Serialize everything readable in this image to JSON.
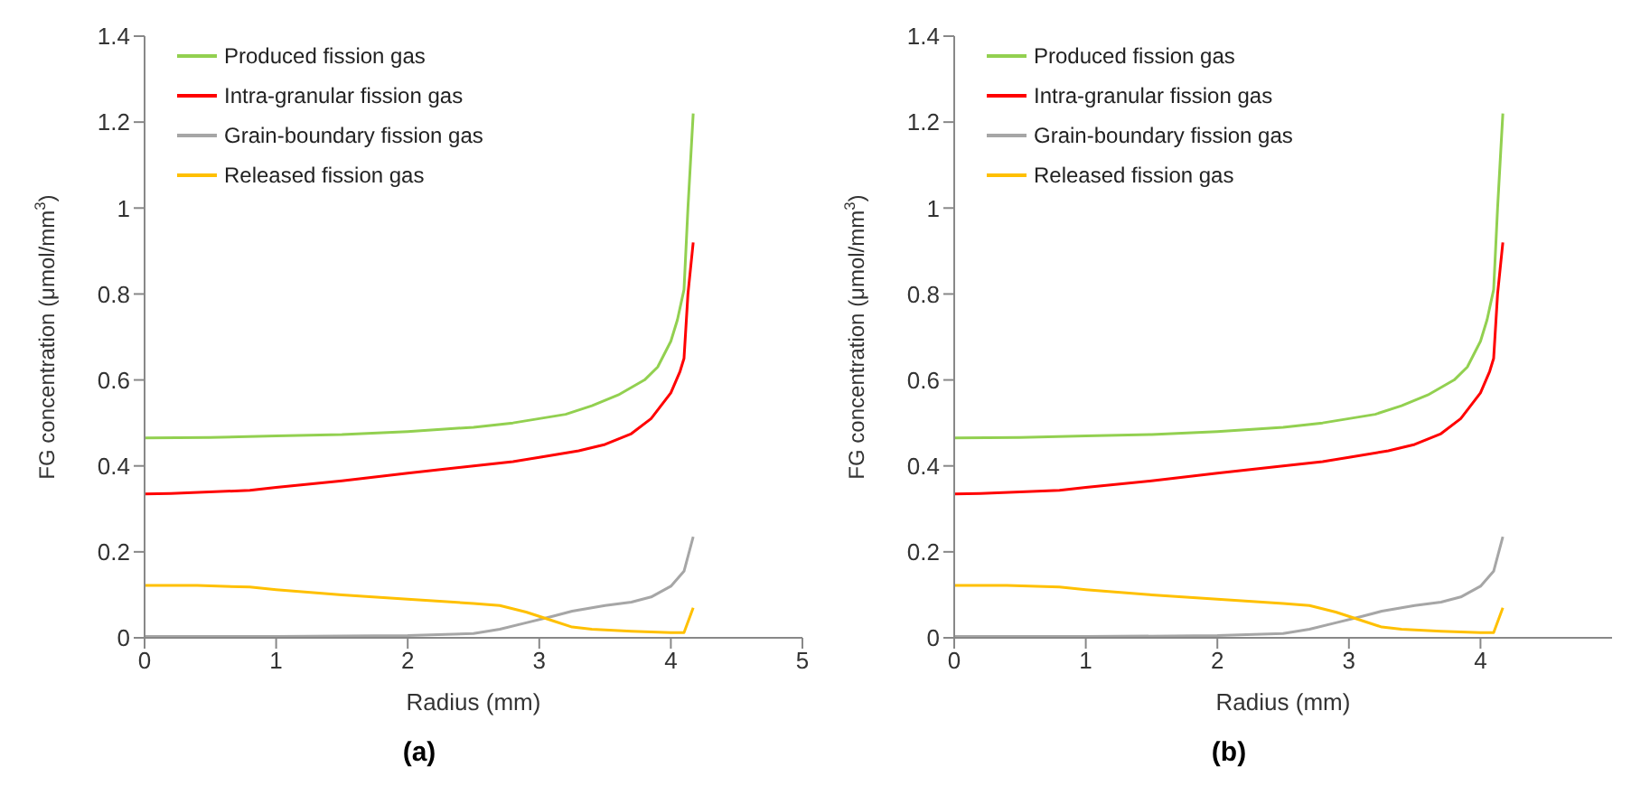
{
  "chart_data": [
    {
      "type": "line",
      "annotations": [
        "(a)"
      ],
      "xlabel": "Radius (mm)",
      "ylabel": "FG concentration (μmol/mm$^{3}$)",
      "xlim": [
        0,
        5
      ],
      "xticks": [
        0,
        1,
        2,
        3,
        4,
        5
      ],
      "ylim": [
        0,
        1.4
      ],
      "yticks": [
        0,
        0.2,
        0.4,
        0.6,
        0.8,
        1,
        1.2,
        1.4
      ],
      "grid": false,
      "legend": "top left",
      "marker": "none",
      "line_style": "solid",
      "series": [
        {
          "name": "Produced fission gas",
          "color": "#92d050",
          "x": [
            0,
            0.5,
            1,
            1.5,
            2,
            2.5,
            2.8,
            3,
            3.2,
            3.4,
            3.6,
            3.8,
            3.9,
            4.0,
            4.05,
            4.1,
            4.13,
            4.17
          ],
          "values": [
            0.465,
            0.466,
            0.47,
            0.473,
            0.48,
            0.49,
            0.5,
            0.51,
            0.52,
            0.54,
            0.565,
            0.6,
            0.63,
            0.69,
            0.74,
            0.81,
            1.0,
            1.22
          ]
        },
        {
          "name": "Intra-granular fission gas",
          "color": "#ff0000",
          "x": [
            0,
            0.2,
            0.8,
            1,
            1.5,
            2,
            2.5,
            2.8,
            3,
            3.3,
            3.5,
            3.7,
            3.85,
            4.0,
            4.07,
            4.1,
            4.13,
            4.17
          ],
          "values": [
            0.335,
            0.336,
            0.343,
            0.35,
            0.365,
            0.383,
            0.4,
            0.41,
            0.42,
            0.435,
            0.45,
            0.475,
            0.51,
            0.57,
            0.62,
            0.65,
            0.8,
            0.92
          ]
        },
        {
          "name": "Grain-boundary fission gas",
          "color": "#a6a6a6",
          "x": [
            0,
            1,
            2,
            2.5,
            2.7,
            2.9,
            3.1,
            3.25,
            3.5,
            3.7,
            3.85,
            4.0,
            4.1,
            4.17
          ],
          "values": [
            0.003,
            0.003,
            0.005,
            0.01,
            0.02,
            0.035,
            0.05,
            0.062,
            0.075,
            0.083,
            0.095,
            0.12,
            0.155,
            0.235
          ]
        },
        {
          "name": "Released fission gas",
          "color": "#ffc000",
          "x": [
            0,
            0.4,
            0.8,
            1,
            1.5,
            2,
            2.5,
            2.7,
            2.9,
            3.1,
            3.25,
            3.4,
            3.7,
            4.0,
            4.1,
            4.17
          ],
          "values": [
            0.122,
            0.122,
            0.118,
            0.112,
            0.1,
            0.09,
            0.08,
            0.075,
            0.06,
            0.04,
            0.025,
            0.02,
            0.015,
            0.012,
            0.012,
            0.07
          ]
        }
      ]
    },
    {
      "type": "line",
      "annotations": [
        "(b)"
      ],
      "xlabel": "Radius (mm)",
      "ylabel": "FG concentration (μmol/mm$^{3}$)",
      "xlim": [
        0,
        5
      ],
      "xticks": [
        0,
        1,
        2,
        3,
        4
      ],
      "ylim": [
        0,
        1.4
      ],
      "yticks": [
        0,
        0.2,
        0.4,
        0.6,
        0.8,
        1,
        1.2,
        1.4
      ],
      "grid": false,
      "legend": "top left",
      "marker": "none",
      "line_style": "solid",
      "series": [
        {
          "name": "Produced fission gas",
          "color": "#92d050",
          "x": [
            0,
            0.5,
            1,
            1.5,
            2,
            2.5,
            2.8,
            3,
            3.2,
            3.4,
            3.6,
            3.8,
            3.9,
            4.0,
            4.05,
            4.1,
            4.13,
            4.17
          ],
          "values": [
            0.465,
            0.466,
            0.47,
            0.473,
            0.48,
            0.49,
            0.5,
            0.51,
            0.52,
            0.54,
            0.565,
            0.6,
            0.63,
            0.69,
            0.74,
            0.81,
            1.0,
            1.22
          ]
        },
        {
          "name": "Intra-granular fission gas",
          "color": "#ff0000",
          "x": [
            0,
            0.2,
            0.8,
            1,
            1.5,
            2,
            2.5,
            2.8,
            3,
            3.3,
            3.5,
            3.7,
            3.85,
            4.0,
            4.07,
            4.1,
            4.13,
            4.17
          ],
          "values": [
            0.335,
            0.336,
            0.343,
            0.35,
            0.365,
            0.383,
            0.4,
            0.41,
            0.42,
            0.435,
            0.45,
            0.475,
            0.51,
            0.57,
            0.62,
            0.65,
            0.8,
            0.92
          ]
        },
        {
          "name": "Grain-boundary fission gas",
          "color": "#a6a6a6",
          "x": [
            0,
            1,
            2,
            2.5,
            2.7,
            2.9,
            3.1,
            3.25,
            3.5,
            3.7,
            3.85,
            4.0,
            4.1,
            4.17
          ],
          "values": [
            0.003,
            0.003,
            0.005,
            0.01,
            0.02,
            0.035,
            0.05,
            0.062,
            0.075,
            0.083,
            0.095,
            0.12,
            0.155,
            0.235
          ]
        },
        {
          "name": "Released fission gas",
          "color": "#ffc000",
          "x": [
            0,
            0.4,
            0.8,
            1,
            1.5,
            2,
            2.5,
            2.7,
            2.9,
            3.1,
            3.25,
            3.4,
            3.7,
            4.0,
            4.1,
            4.17
          ],
          "values": [
            0.122,
            0.122,
            0.118,
            0.112,
            0.1,
            0.09,
            0.08,
            0.075,
            0.06,
            0.04,
            0.025,
            0.02,
            0.015,
            0.012,
            0.012,
            0.07
          ]
        }
      ]
    }
  ]
}
